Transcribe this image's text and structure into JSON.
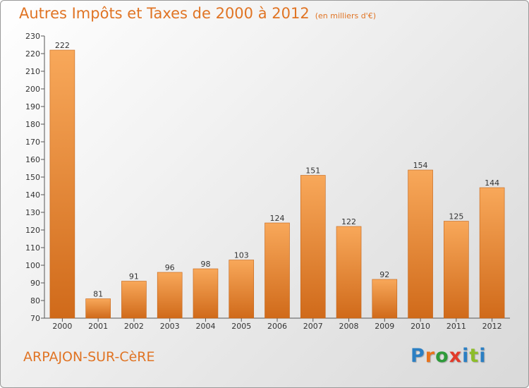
{
  "header": {
    "title": "Autres Impôts et Taxes de 2000 à 2012",
    "unit": "(en milliers d'€)"
  },
  "footer": {
    "city": "ARPAJON-SUR-CèRE",
    "logo_letters": [
      "P",
      "r",
      "o",
      "x",
      "i",
      "t",
      "i"
    ]
  },
  "colors": {
    "accent": "#e07424",
    "bar_light": "#f8a85a",
    "bar_dark": "#d06a1a",
    "logo": [
      "#2b7fc3",
      "#e8731c",
      "#2e9a3a",
      "#e23a2a",
      "#2b7fc3",
      "#8dbd2a",
      "#2b7fc3"
    ]
  },
  "chart_data": {
    "type": "bar",
    "categories": [
      "2000",
      "2001",
      "2002",
      "2003",
      "2004",
      "2005",
      "2006",
      "2007",
      "2008",
      "2009",
      "2010",
      "2011",
      "2012"
    ],
    "values": [
      222,
      81,
      91,
      96,
      98,
      103,
      124,
      151,
      122,
      92,
      154,
      125,
      144
    ],
    "ylim": [
      70,
      230
    ],
    "yticks": [
      70,
      80,
      90,
      100,
      110,
      120,
      130,
      140,
      150,
      160,
      170,
      180,
      190,
      200,
      210,
      220,
      230
    ],
    "grid": false,
    "show_value_labels": true
  }
}
